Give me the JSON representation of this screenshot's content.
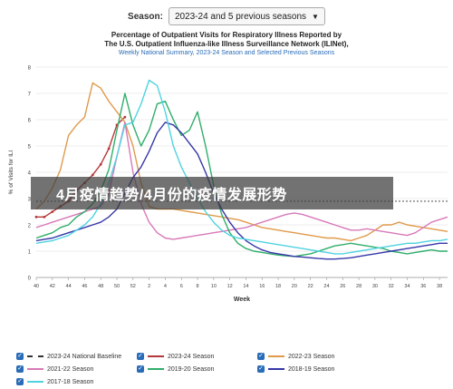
{
  "season_selector": {
    "label": "Season:",
    "value": "2023-24 and 5 previous seasons"
  },
  "header": {
    "title_line1": "Percentage of Outpatient Visits for Respiratory Illness Reported by",
    "title_line2": "The U.S. Outpatient Influenza-like Illness Surveillance Network (ILINet),",
    "subtitle": "Weekly National Summary, 2023-24 Season and Selected Previous Seasons"
  },
  "overlay": {
    "text": "4月疫情趋势/4月份的疫情发展形势"
  },
  "chart_data": {
    "type": "line",
    "xlabel": "Week",
    "ylabel": "% of Visits for ILI",
    "ylim": [
      0,
      8
    ],
    "yticks": [
      0,
      1,
      2,
      3,
      4,
      5,
      6,
      7,
      8
    ],
    "xticks": [
      "40",
      "42",
      "44",
      "46",
      "48",
      "50",
      "52",
      "2",
      "4",
      "6",
      "8",
      "10",
      "12",
      "14",
      "16",
      "18",
      "20",
      "22",
      "24",
      "26",
      "28",
      "30",
      "32",
      "34",
      "36",
      "38"
    ],
    "baseline": {
      "name": "2023-24 National Baseline",
      "value": 2.9,
      "color": "#333333"
    },
    "series": [
      {
        "name": "2023-24 Season",
        "color": "#b5393b",
        "values": [
          2.3,
          2.3,
          2.5,
          2.7,
          2.9,
          3.3,
          3.6,
          3.9,
          4.3,
          4.9,
          5.8,
          6.1
        ]
      },
      {
        "name": "2022-23 Season",
        "color": "#e09a4a",
        "values": [
          2.6,
          2.9,
          3.4,
          4.1,
          5.4,
          5.8,
          6.1,
          7.4,
          7.2,
          6.7,
          6.3,
          5.9,
          5.0,
          3.6,
          2.7,
          2.6,
          2.6,
          2.6,
          2.55,
          2.5,
          2.45,
          2.4,
          2.35,
          2.3,
          2.25,
          2.2,
          2.1,
          2.0,
          1.9,
          1.85,
          1.8,
          1.75,
          1.7,
          1.65,
          1.6,
          1.55,
          1.5,
          1.5,
          1.45,
          1.4,
          1.5,
          1.6,
          1.8,
          2.0,
          2.0,
          2.1,
          2.0,
          1.95,
          1.9,
          1.85,
          1.8,
          1.75
        ]
      },
      {
        "name": "2021-22 Season",
        "color": "#d879b9",
        "values": [
          1.9,
          2.0,
          2.1,
          2.2,
          2.3,
          2.4,
          2.5,
          2.6,
          2.7,
          3.2,
          4.6,
          5.9,
          4.0,
          2.8,
          2.1,
          1.7,
          1.5,
          1.45,
          1.5,
          1.55,
          1.6,
          1.65,
          1.7,
          1.75,
          1.8,
          1.85,
          1.9,
          2.0,
          2.1,
          2.2,
          2.3,
          2.4,
          2.45,
          2.4,
          2.3,
          2.2,
          2.1,
          2.0,
          1.9,
          1.8,
          1.8,
          1.85,
          1.8,
          1.75,
          1.7,
          1.65,
          1.6,
          1.7,
          1.9,
          2.1,
          2.2,
          2.3
        ]
      },
      {
        "name": "2019-20 Season",
        "color": "#2fae6a",
        "values": [
          1.5,
          1.6,
          1.7,
          1.9,
          2.0,
          2.3,
          2.5,
          2.8,
          3.3,
          4.1,
          5.6,
          7.0,
          5.8,
          5.0,
          5.6,
          6.6,
          6.7,
          6.0,
          5.4,
          5.6,
          6.3,
          5.0,
          3.5,
          2.4,
          1.7,
          1.3,
          1.1,
          1.0,
          0.95,
          0.9,
          0.85,
          0.82,
          0.8,
          0.85,
          0.9,
          1.0,
          1.1,
          1.2,
          1.25,
          1.3,
          1.25,
          1.2,
          1.15,
          1.1,
          1.0,
          0.95,
          0.9,
          0.95,
          1.0,
          1.05,
          1.0,
          1.0
        ]
      },
      {
        "name": "2018-19 Season",
        "color": "#3636a8",
        "values": [
          1.4,
          1.45,
          1.5,
          1.6,
          1.7,
          1.8,
          1.9,
          2.0,
          2.1,
          2.3,
          2.6,
          3.2,
          3.8,
          4.2,
          4.8,
          5.5,
          5.9,
          5.8,
          5.5,
          5.1,
          4.7,
          4.0,
          3.2,
          2.6,
          2.1,
          1.7,
          1.4,
          1.2,
          1.05,
          0.95,
          0.9,
          0.85,
          0.8,
          0.78,
          0.75,
          0.72,
          0.7,
          0.7,
          0.72,
          0.75,
          0.8,
          0.85,
          0.9,
          0.95,
          1.0,
          1.05,
          1.1,
          1.15,
          1.2,
          1.25,
          1.3,
          1.3
        ]
      },
      {
        "name": "2017-18 Season",
        "color": "#4fd3e0",
        "values": [
          1.3,
          1.35,
          1.4,
          1.5,
          1.6,
          1.8,
          2.0,
          2.3,
          2.8,
          3.6,
          4.6,
          5.8,
          5.9,
          6.6,
          7.5,
          7.3,
          6.3,
          5.0,
          4.2,
          3.6,
          3.0,
          2.5,
          2.1,
          1.8,
          1.6,
          1.5,
          1.45,
          1.4,
          1.35,
          1.3,
          1.25,
          1.2,
          1.15,
          1.1,
          1.05,
          1.0,
          0.95,
          0.9,
          0.9,
          0.95,
          1.0,
          1.05,
          1.1,
          1.15,
          1.2,
          1.25,
          1.3,
          1.3,
          1.35,
          1.4,
          1.4,
          1.45
        ]
      }
    ]
  },
  "legend": [
    {
      "label": "2023-24 National Baseline",
      "color": "#333333",
      "dashed": true
    },
    {
      "label": "2023-24 Season",
      "color": "#b5393b",
      "dashed": false
    },
    {
      "label": "2022-23 Season",
      "color": "#e09a4a",
      "dashed": false
    },
    {
      "label": "2021-22 Season",
      "color": "#d879b9",
      "dashed": false
    },
    {
      "label": "2019-20 Season",
      "color": "#2fae6a",
      "dashed": false
    },
    {
      "label": "2018-19 Season",
      "color": "#3636a8",
      "dashed": false
    },
    {
      "label": "2017-18 Season",
      "color": "#4fd3e0",
      "dashed": false
    }
  ]
}
